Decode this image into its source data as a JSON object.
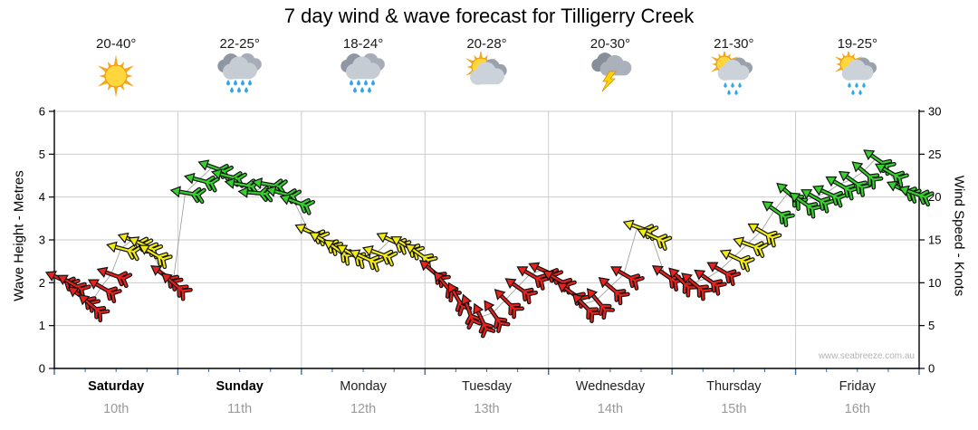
{
  "title": "7 day wind & wave forecast for Tilligerry Creek",
  "watermark": "www.seabreeze.com.au",
  "axes": {
    "left": {
      "label": "Wave Height - Metres",
      "ticks": [
        0,
        1,
        2,
        3,
        4,
        5,
        6
      ],
      "max": 6
    },
    "right": {
      "label": "Wind Speed - Knots",
      "ticks": [
        0,
        5,
        10,
        15,
        20,
        25,
        30
      ],
      "max": 30
    }
  },
  "colors": {
    "red": "#e8211d",
    "yellow": "#f3ec13",
    "green": "#35d02b",
    "grid": "#cccccc",
    "axis": "#000000",
    "connector": "#999999",
    "minor_tick": "#3b6ea5"
  },
  "thresholds": {
    "yellow_min": 12,
    "green_min": 18
  },
  "days": [
    {
      "name": "Saturday",
      "date": "10th",
      "temp": "20-40°",
      "icon": "sunny",
      "bold": true
    },
    {
      "name": "Sunday",
      "date": "11th",
      "temp": "22-25°",
      "icon": "rain",
      "bold": true
    },
    {
      "name": "Monday",
      "date": "12th",
      "temp": "18-24°",
      "icon": "rain",
      "bold": false
    },
    {
      "name": "Tuesday",
      "date": "13th",
      "temp": "20-28°",
      "icon": "partly-cloudy",
      "bold": false
    },
    {
      "name": "Wednesday",
      "date": "14th",
      "temp": "20-30°",
      "icon": "thunderstorm",
      "bold": false
    },
    {
      "name": "Thursday",
      "date": "15th",
      "temp": "21-30°",
      "icon": "sun-shower",
      "bold": false
    },
    {
      "name": "Friday",
      "date": "16th",
      "temp": "19-25°",
      "icon": "sun-shower",
      "bold": false
    }
  ],
  "chart_data": {
    "type": "wind-barb-timeseries",
    "title": "7 day wind & wave forecast for Tilligerry Creek",
    "ylabel_left": "Wave Height - Metres",
    "ylabel_right": "Wind Speed - Knots",
    "categories": [
      "Saturday",
      "Sunday",
      "Monday",
      "Tuesday",
      "Wednesday",
      "Thursday",
      "Friday"
    ],
    "x_unit": "days",
    "x_range": [
      0,
      7
    ],
    "knots_range": [
      0,
      30
    ],
    "metres_range": [
      0,
      6
    ],
    "points_format": [
      "x_day",
      "knots",
      "dir_deg"
    ],
    "points": [
      [
        0.04,
        10.5,
        205
      ],
      [
        0.13,
        10,
        210
      ],
      [
        0.21,
        8.5,
        215
      ],
      [
        0.29,
        7.5,
        220
      ],
      [
        0.38,
        9.5,
        210
      ],
      [
        0.46,
        11,
        200
      ],
      [
        0.54,
        14,
        195
      ],
      [
        0.63,
        15,
        200
      ],
      [
        0.71,
        14.5,
        205
      ],
      [
        0.79,
        13.5,
        210
      ],
      [
        0.88,
        11,
        215
      ],
      [
        0.96,
        10,
        220
      ],
      [
        1.06,
        20.5,
        190
      ],
      [
        1.17,
        22,
        195
      ],
      [
        1.28,
        23.5,
        200
      ],
      [
        1.39,
        22.5,
        195
      ],
      [
        1.5,
        21.5,
        190
      ],
      [
        1.61,
        20.5,
        185
      ],
      [
        1.72,
        21.5,
        190
      ],
      [
        1.83,
        20.5,
        195
      ],
      [
        1.94,
        19.5,
        200
      ],
      [
        2.06,
        16,
        205
      ],
      [
        2.17,
        15,
        210
      ],
      [
        2.28,
        14,
        215
      ],
      [
        2.39,
        13.5,
        210
      ],
      [
        2.5,
        13,
        205
      ],
      [
        2.61,
        13.5,
        200
      ],
      [
        2.72,
        15,
        205
      ],
      [
        2.83,
        14.5,
        210
      ],
      [
        2.94,
        13.5,
        215
      ],
      [
        3.05,
        11.5,
        220
      ],
      [
        3.15,
        10,
        230
      ],
      [
        3.25,
        8.5,
        240
      ],
      [
        3.35,
        7,
        250
      ],
      [
        3.45,
        6,
        245
      ],
      [
        3.55,
        6.5,
        235
      ],
      [
        3.65,
        8,
        225
      ],
      [
        3.75,
        9.5,
        215
      ],
      [
        3.85,
        11,
        210
      ],
      [
        3.95,
        11.5,
        205
      ],
      [
        4.06,
        10.5,
        210
      ],
      [
        4.17,
        9,
        215
      ],
      [
        4.28,
        7.5,
        225
      ],
      [
        4.39,
        8,
        230
      ],
      [
        4.5,
        9.5,
        220
      ],
      [
        4.61,
        11,
        210
      ],
      [
        4.72,
        16.5,
        200
      ],
      [
        4.83,
        15.5,
        205
      ],
      [
        4.94,
        11,
        215
      ],
      [
        5.06,
        10.5,
        225
      ],
      [
        5.17,
        10,
        220
      ],
      [
        5.28,
        10.5,
        215
      ],
      [
        5.39,
        11.5,
        210
      ],
      [
        5.5,
        13,
        205
      ],
      [
        5.61,
        14.5,
        200
      ],
      [
        5.72,
        16,
        210
      ],
      [
        5.83,
        18.5,
        215
      ],
      [
        5.94,
        20.5,
        220
      ],
      [
        6.05,
        19.5,
        215
      ],
      [
        6.15,
        20,
        210
      ],
      [
        6.25,
        20.5,
        205
      ],
      [
        6.35,
        21.5,
        210
      ],
      [
        6.45,
        22,
        215
      ],
      [
        6.55,
        23,
        220
      ],
      [
        6.65,
        24.5,
        215
      ],
      [
        6.75,
        23,
        210
      ],
      [
        6.85,
        21,
        205
      ],
      [
        6.95,
        20.5,
        200
      ]
    ]
  }
}
